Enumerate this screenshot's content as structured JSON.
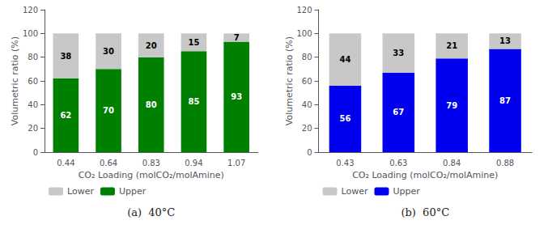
{
  "chart_data": [
    {
      "type": "bar",
      "title": "(a)  40°C",
      "categories": [
        "0.44",
        "0.64",
        "0.83",
        "0.94",
        "1.07"
      ],
      "series": [
        {
          "name": "Upper",
          "color": "#008000",
          "values": [
            62,
            70,
            80,
            85,
            93
          ]
        },
        {
          "name": "Lower",
          "color": "#c8c8c8",
          "values": [
            38,
            30,
            20,
            15,
            7
          ]
        }
      ],
      "xlabel": "CO₂ Loading (molCO₂/molAmine)",
      "ylabel": "Volumetric ratio (%)",
      "ylim": [
        0,
        120
      ],
      "yticks": [
        0,
        20,
        40,
        60,
        80,
        100,
        120
      ],
      "stacked": true,
      "data_labels": true,
      "grid": false,
      "legend": "lower left"
    },
    {
      "type": "bar",
      "title": "(b)  60°C",
      "categories": [
        "0.43",
        "0.63",
        "0.84",
        "0.88"
      ],
      "series": [
        {
          "name": "Upper",
          "color": "#0000ee",
          "values": [
            56,
            67,
            79,
            87
          ]
        },
        {
          "name": "Lower",
          "color": "#c8c8c8",
          "values": [
            44,
            33,
            21,
            13
          ]
        }
      ],
      "xlabel": "CO₂ Loading (molCO₂/molAmine)",
      "ylabel": "Volumetric ratio (%)",
      "ylim": [
        0,
        120
      ],
      "yticks": [
        0,
        20,
        40,
        60,
        80,
        100,
        120
      ],
      "stacked": true,
      "data_labels": true,
      "grid": false,
      "legend": "lower left"
    }
  ]
}
